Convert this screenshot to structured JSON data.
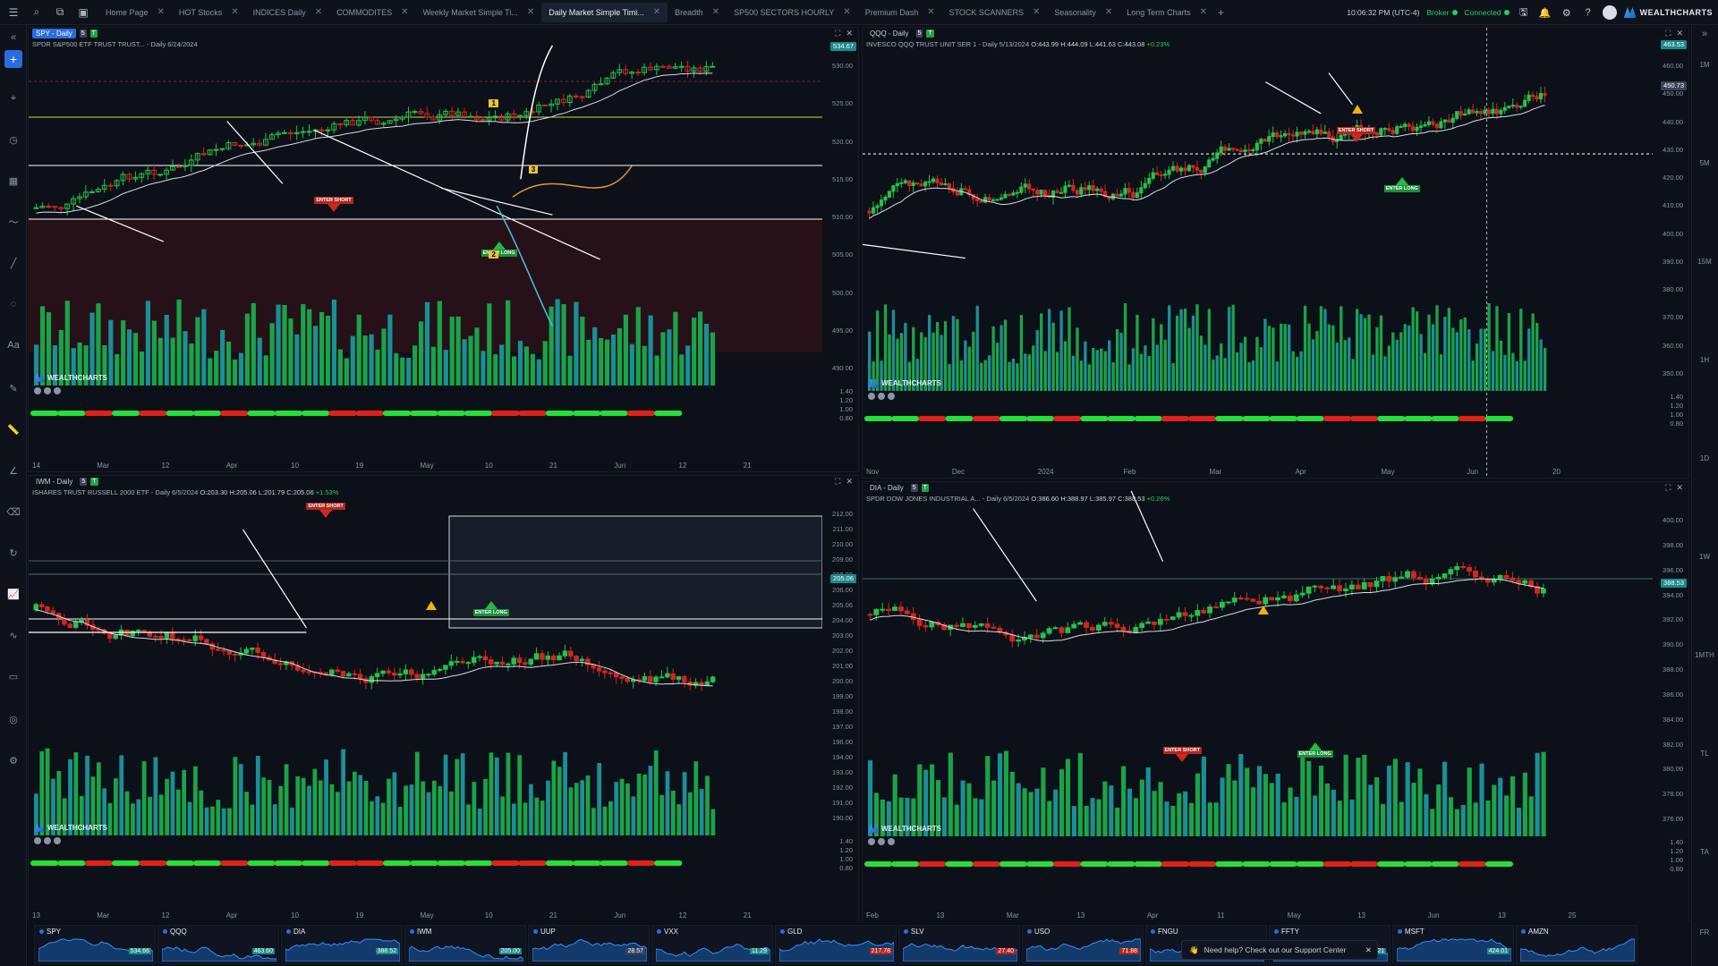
{
  "tabs": [
    {
      "label": "Home Page",
      "active": false
    },
    {
      "label": "HOT Stocks",
      "active": false
    },
    {
      "label": "INDICES Daily",
      "active": false
    },
    {
      "label": "COMMODITES",
      "active": false
    },
    {
      "label": "Weekly Market Simple Ti...",
      "active": false
    },
    {
      "label": "Daily Market Simple Timi...",
      "active": true
    },
    {
      "label": "Breadth",
      "active": false
    },
    {
      "label": "SP500 SECTORS HOURLY",
      "active": false
    },
    {
      "label": "Premium Dash",
      "active": false
    },
    {
      "label": "STOCK SCANNERS",
      "active": false
    },
    {
      "label": "Seasonality",
      "active": false
    },
    {
      "label": "Long Term Charts",
      "active": false
    }
  ],
  "status": {
    "time": "10:06:32 PM",
    "tz": "(UTC-4)",
    "broker": "Broker",
    "connected": "Connected",
    "brand": "WEALTHCHARTS"
  },
  "brand": "WEALTHCHARTS",
  "colors": {
    "up": "#25c24b",
    "down": "#d0281e",
    "volume_up": "#1aa34a",
    "volume_teal": "#1a8f95",
    "accent": "#2a6de0",
    "warn": "#f0b400"
  },
  "panels": [
    {
      "id": "spy",
      "symbol": "SPY - Daily",
      "badge": "5",
      "title": "SPDR S&P500 ETF TRUST TRUST... - Daily 6/24/2024",
      "ohlc": "",
      "change": "",
      "price_tag": "534.67",
      "yticks": [
        "530.00",
        "525.00",
        "520.00",
        "515.00",
        "510.00",
        "505.00",
        "500.00",
        "495.00",
        "490.00"
      ],
      "ind_ticks": [
        "1.40",
        "1.20",
        "1.00",
        "0.80"
      ],
      "xticks": [
        "14",
        "Mar",
        "12",
        "Apr",
        "10",
        "19",
        "May",
        "10",
        "21",
        "Jun",
        "12",
        "21"
      ],
      "labels": {
        "one": "1",
        "two": "2",
        "three": "3"
      },
      "enter_short": "ENTER SHORT",
      "enter_long": "ENTER LONG"
    },
    {
      "id": "qqq",
      "symbol": "QQQ - Daily",
      "badge": "5",
      "title": "INVESCO QQQ TRUST UNIT SER 1 - Daily 5/13/2024",
      "ohlc": "O:443.99 H:444.09 L:441.63 C:443.08",
      "change": "+0.23%",
      "price_tag": "463.53",
      "price_tag2": "450.73",
      "yticks": [
        "460.00",
        "450.00",
        "440.00",
        "430.00",
        "420.00",
        "410.00",
        "400.00",
        "390.00",
        "380.00",
        "370.00",
        "360.00",
        "350.00"
      ],
      "ind_ticks": [
        "1.40",
        "1.20",
        "1.00",
        "0.80"
      ],
      "xticks": [
        "Nov",
        "Dec",
        "2024",
        "Feb",
        "Mar",
        "Apr",
        "May",
        "Jun",
        "20"
      ],
      "enter_short": "ENTER SHORT",
      "enter_long": "ENTER LONG"
    },
    {
      "id": "iwm",
      "symbol": "IWM - Daily",
      "badge": "5",
      "title": "ISHARES TRUST RUSSELL 2000 ETF - Daily 6/5/2024",
      "ohlc": "O:203.30 H:205.06 L:201.79 C:205.06",
      "change": "+1.53%",
      "price_tag": "205.06",
      "yticks": [
        "212.00",
        "211.00",
        "210.00",
        "209.00",
        "208.00",
        "206.00",
        "205.06",
        "204.00",
        "203.00",
        "202.00",
        "201.00",
        "200.00",
        "199.00",
        "198.00",
        "197.00",
        "196.00",
        "194.00",
        "193.00",
        "192.00",
        "191.00",
        "190.00"
      ],
      "ind_ticks": [
        "1.40",
        "1.20",
        "1.00",
        "0.80"
      ],
      "xticks": [
        "13",
        "Mar",
        "12",
        "Apr",
        "10",
        "19",
        "May",
        "10",
        "21",
        "Jun",
        "12",
        "21"
      ],
      "enter_short": "ENTER SHORT",
      "enter_long": "ENTER LONG"
    },
    {
      "id": "dia",
      "symbol": "DIA - Daily",
      "badge": "5",
      "title": "SPDR DOW JONES INDUSTRIAL A... - Daily 6/5/2024",
      "ohlc": "O:386.60 H:388.97 L:385.97 C:388.53",
      "change": "+0.26%",
      "price_tag": "388.53",
      "yticks": [
        "400.00",
        "398.00",
        "396.00",
        "394.00",
        "392.00",
        "390.00",
        "388.00",
        "386.00",
        "384.00",
        "382.00",
        "380.00",
        "378.00",
        "376.00"
      ],
      "ind_ticks": [
        "1.40",
        "1.20",
        "1.00",
        "0.80"
      ],
      "xticks": [
        "Feb",
        "13",
        "Mar",
        "13",
        "Apr",
        "11",
        "May",
        "13",
        "Jun",
        "13",
        "25"
      ],
      "enter_short": "ENTER SHORT",
      "enter_long": "ENTER LONG"
    }
  ],
  "right_sidebar": [
    "1M",
    "5M",
    "15M",
    "1H",
    "1D",
    "1W",
    "1MTH",
    "TL",
    "TA",
    "FR"
  ],
  "ticker": [
    {
      "name": "SPY",
      "price": "534.66",
      "color": "#1c8a8a"
    },
    {
      "name": "QQQ",
      "price": "463.60",
      "color": "#1c8a8a"
    },
    {
      "name": "DIA",
      "price": "388.52",
      "color": "#1c8a8a"
    },
    {
      "name": "IWM",
      "price": "205.00",
      "color": "#1c8a8a"
    },
    {
      "name": "UUP",
      "price": "28.57",
      "color": "#3b4456"
    },
    {
      "name": "VXX",
      "price": "11.29",
      "color": "#1c8a8a"
    },
    {
      "name": "GLD",
      "price": "217.78",
      "color": "#b3261e"
    },
    {
      "name": "SLV",
      "price": "27.40",
      "color": "#b3261e"
    },
    {
      "name": "USO",
      "price": "71.88",
      "color": "#b3261e"
    },
    {
      "name": "FNGU",
      "price": "376.44",
      "color": "#1c8a8a"
    },
    {
      "name": "FFTY",
      "price": "28.21",
      "color": "#1c8a8a"
    },
    {
      "name": "MSFT",
      "price": "424.01",
      "color": "#1c8a8a"
    },
    {
      "name": "AMZN",
      "price": "",
      "color": "#1c8a8a"
    }
  ],
  "help": "Need help? Check out our Support Center"
}
